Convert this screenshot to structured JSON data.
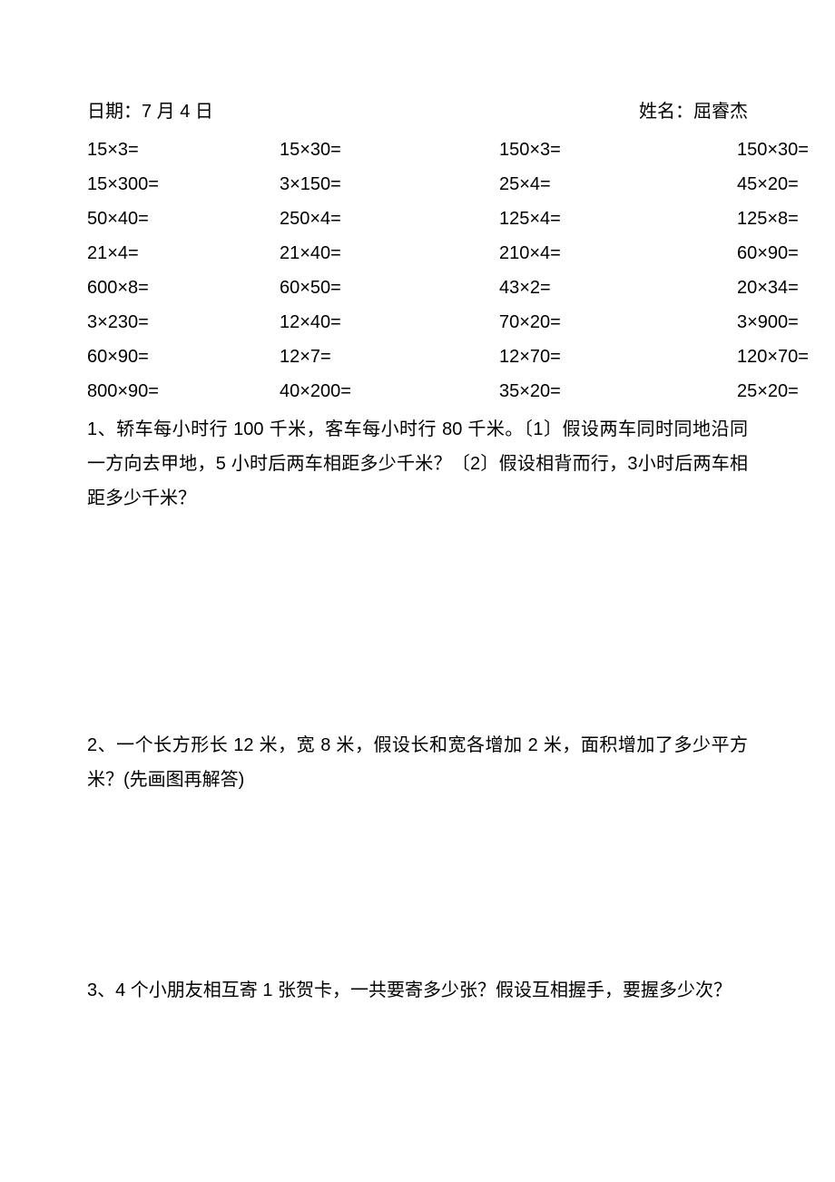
{
  "header": {
    "date_label": "日期：7 月 4 日",
    "name_label": "姓名：屈睿杰"
  },
  "math": {
    "rows": [
      [
        "15×3=",
        "15×30=",
        "150×3=",
        "150×30="
      ],
      [
        "15×300=",
        "3×150=",
        "25×4=",
        "45×20="
      ],
      [
        "50×40=",
        "250×4=",
        "125×4=",
        "125×8="
      ],
      [
        "21×4=",
        "21×40=",
        "210×4=",
        "60×90="
      ],
      [
        "600×8=",
        "60×50=",
        "43×2=",
        "20×34="
      ],
      [
        "3×230=",
        "12×40=",
        "70×20=",
        "3×900="
      ],
      [
        "60×90=",
        "12×7=",
        "12×70=",
        "120×70="
      ],
      [
        "800×90=",
        "40×200=",
        "35×20=",
        "25×20="
      ]
    ]
  },
  "problems": {
    "p1": "1、轿车每小时行 100 千米，客车每小时行 80 千米。〔1〕假设两车同时同地沿同一方向去甲地，5 小时后两车相距多少千米？〔2〕假设相背而行，3小时后两车相距多少千米？",
    "p2": "2、一个长方形长 12 米，宽 8 米，假设长和宽各增加 2 米，面积增加了多少平方米？(先画图再解答)",
    "p3": "3、4 个小朋友相互寄 1 张贺卡，一共要寄多少张？假设互相握手，要握多少次？"
  }
}
